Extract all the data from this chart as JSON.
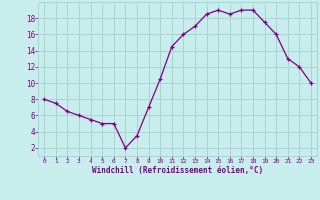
{
  "x": [
    0,
    1,
    2,
    3,
    4,
    5,
    6,
    7,
    8,
    9,
    10,
    11,
    12,
    13,
    14,
    15,
    16,
    17,
    18,
    19,
    20,
    21,
    22,
    23
  ],
  "y": [
    8,
    7.5,
    6.5,
    6,
    5.5,
    5,
    5,
    2,
    3.5,
    7,
    10.5,
    14.5,
    16,
    17,
    18.5,
    19,
    18.5,
    19,
    19,
    17.5,
    16,
    13,
    12,
    10
  ],
  "line_color": "#800080",
  "marker": "+",
  "bg_color": "#c8eded",
  "grid_color": "#a8d4d4",
  "xlabel": "Windchill (Refroidissement éolien,°C)",
  "xlabel_color": "#800080",
  "tick_color": "#800080",
  "ylim": [
    1,
    20
  ],
  "xlim": [
    -0.5,
    23.5
  ],
  "yticks": [
    2,
    4,
    6,
    8,
    10,
    12,
    14,
    16,
    18
  ],
  "xticks": [
    0,
    1,
    2,
    3,
    4,
    5,
    6,
    7,
    8,
    9,
    10,
    11,
    12,
    13,
    14,
    15,
    16,
    17,
    18,
    19,
    20,
    21,
    22,
    23
  ]
}
